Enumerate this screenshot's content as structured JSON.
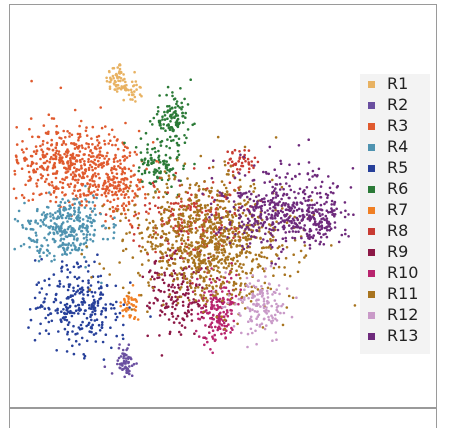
{
  "chart_data": {
    "type": "scatter",
    "title": "",
    "xlabel": "",
    "ylabel": "",
    "grid": false,
    "legend_placement": "right",
    "series": [
      {
        "name": "R1",
        "color": "#e8b262",
        "clusters": [
          {
            "cx": 118,
            "cy": 78,
            "sx": 6,
            "sy": 8,
            "n": 55
          },
          {
            "cx": 130,
            "cy": 92,
            "sx": 8,
            "sy": 6,
            "n": 30
          }
        ]
      },
      {
        "name": "R2",
        "color": "#6a4fa0",
        "clusters": [
          {
            "cx": 125,
            "cy": 362,
            "sx": 5,
            "sy": 10,
            "n": 60
          }
        ]
      },
      {
        "name": "R3",
        "color": "#e05a2e",
        "clusters": [
          {
            "cx": 75,
            "cy": 165,
            "sx": 28,
            "sy": 20,
            "n": 520
          },
          {
            "cx": 120,
            "cy": 185,
            "sx": 14,
            "sy": 18,
            "n": 120
          }
        ]
      },
      {
        "name": "R4",
        "color": "#4f93b0",
        "clusters": [
          {
            "cx": 65,
            "cy": 228,
            "sx": 22,
            "sy": 16,
            "n": 320
          }
        ]
      },
      {
        "name": "R5",
        "color": "#27409a",
        "clusters": [
          {
            "cx": 80,
            "cy": 308,
            "sx": 22,
            "sy": 20,
            "n": 280
          }
        ]
      },
      {
        "name": "R6",
        "color": "#2b7a37",
        "clusters": [
          {
            "cx": 172,
            "cy": 120,
            "sx": 9,
            "sy": 14,
            "n": 120
          },
          {
            "cx": 160,
            "cy": 165,
            "sx": 12,
            "sy": 12,
            "n": 100
          }
        ]
      },
      {
        "name": "R7",
        "color": "#f07f24",
        "clusters": [
          {
            "cx": 130,
            "cy": 305,
            "sx": 5,
            "sy": 8,
            "n": 40
          }
        ]
      },
      {
        "name": "R8",
        "color": "#c83b32",
        "clusters": [
          {
            "cx": 240,
            "cy": 162,
            "sx": 7,
            "sy": 6,
            "n": 45
          },
          {
            "cx": 190,
            "cy": 220,
            "sx": 28,
            "sy": 22,
            "n": 180
          }
        ]
      },
      {
        "name": "R9",
        "color": "#8c1846",
        "clusters": [
          {
            "cx": 180,
            "cy": 295,
            "sx": 16,
            "sy": 22,
            "n": 180
          }
        ]
      },
      {
        "name": "R10",
        "color": "#b8246e",
        "clusters": [
          {
            "cx": 218,
            "cy": 310,
            "sx": 12,
            "sy": 18,
            "n": 170
          }
        ]
      },
      {
        "name": "R11",
        "color": "#a8741f",
        "clusters": [
          {
            "cx": 210,
            "cy": 240,
            "sx": 40,
            "sy": 30,
            "n": 900
          }
        ]
      },
      {
        "name": "R12",
        "color": "#c99ac8",
        "clusters": [
          {
            "cx": 260,
            "cy": 305,
            "sx": 14,
            "sy": 14,
            "n": 140
          }
        ]
      },
      {
        "name": "R13",
        "color": "#6e2a7c",
        "clusters": [
          {
            "cx": 280,
            "cy": 210,
            "sx": 28,
            "sy": 20,
            "n": 420
          },
          {
            "cx": 320,
            "cy": 220,
            "sx": 14,
            "sy": 10,
            "n": 100
          }
        ]
      }
    ]
  }
}
